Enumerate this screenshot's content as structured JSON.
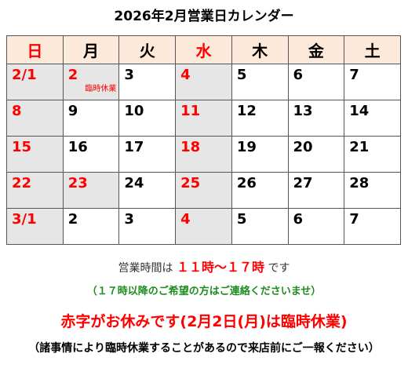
{
  "title": "2026年2月営業日カレンダー",
  "weekdays": [
    "日",
    "月",
    "火",
    "水",
    "木",
    "金",
    "土"
  ],
  "rows": [
    [
      {
        "t": "2/1"
      },
      {
        "t": "2",
        "note": "臨時休業"
      },
      {
        "t": "3"
      },
      {
        "t": "4"
      },
      {
        "t": "5"
      },
      {
        "t": "6"
      },
      {
        "t": "7"
      }
    ],
    [
      {
        "t": "8"
      },
      {
        "t": "9"
      },
      {
        "t": "10"
      },
      {
        "t": "11"
      },
      {
        "t": "12"
      },
      {
        "t": "13"
      },
      {
        "t": "14"
      }
    ],
    [
      {
        "t": "15"
      },
      {
        "t": "16"
      },
      {
        "t": "17"
      },
      {
        "t": "18"
      },
      {
        "t": "19"
      },
      {
        "t": "20"
      },
      {
        "t": "21"
      }
    ],
    [
      {
        "t": "22"
      },
      {
        "t": "23"
      },
      {
        "t": "24"
      },
      {
        "t": "25"
      },
      {
        "t": "26"
      },
      {
        "t": "27"
      },
      {
        "t": "28"
      }
    ],
    [
      {
        "t": "3/1"
      },
      {
        "t": "2"
      },
      {
        "t": "3"
      },
      {
        "t": "4"
      },
      {
        "t": "5"
      },
      {
        "t": "6"
      },
      {
        "t": "7"
      }
    ]
  ],
  "hours": {
    "prefix": "営業時間は",
    "time": "１１時～１７時",
    "suffix": "です"
  },
  "contact_note": "（１７時以降のご希望の方はご連絡くださいませ）",
  "notice": "赤字がお休みです(2月2日(月)は臨時休業)",
  "sub_note": "（諸事情により臨時休業することがあるので来店前にご一報ください）",
  "colors": {
    "holiday_text": "#ff0000",
    "closed_fill": "#e6e6e6",
    "header_fill": "#fde9d9",
    "hours_highlight": "#ff0000",
    "contact_text": "#1e8c1e"
  }
}
